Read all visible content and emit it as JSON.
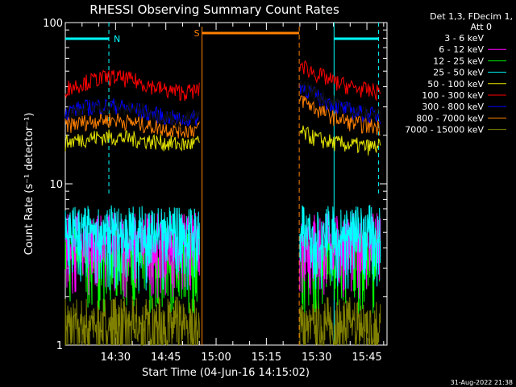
{
  "chart_data": {
    "type": "line",
    "title": "RHESSI Observing Summary Count Rates",
    "xlabel": "Start Time (04-Jun-16 14:15:02)",
    "ylabel": "Count Rate (s⁻¹ detector⁻¹)",
    "yscale": "log",
    "ylim": [
      1,
      100
    ],
    "xlim_min": [
      0,
      96
    ],
    "xtick_labels": [
      "14:30",
      "14:45",
      "15:00",
      "15:15",
      "15:30",
      "15:45"
    ],
    "xtick_min": [
      15,
      30,
      45,
      60,
      75,
      90
    ],
    "ytick_labels": [
      "1",
      "10",
      "100"
    ],
    "ytick_values": [
      1,
      10,
      100
    ],
    "legend_header": [
      "Det 1,3, FDecim 1,",
      "Att 0"
    ],
    "legend_position": "right",
    "data_gaps_min": [
      [
        40.8,
        69.8
      ]
    ],
    "series": [
      {
        "name": "3 - 6 keV",
        "color": "#000000",
        "segments": [
          {
            "x": [
              0,
              5,
              10,
              15,
              20,
              25,
              30,
              35,
              40
            ],
            "y": [
              28,
              29,
              30,
              30,
              29,
              28,
              26,
              25,
              26
            ]
          },
          {
            "x": [
              70,
              75,
              80,
              85,
              90,
              94
            ],
            "y": [
              42,
              36,
              32,
              29,
              27,
              27
            ]
          }
        ]
      },
      {
        "name": "6 - 12 keV",
        "color": "#ff00ff",
        "segments": [
          {
            "x": [
              0,
              40
            ],
            "y": [
              4.3,
              4.3
            ]
          },
          {
            "x": [
              70,
              94
            ],
            "y": [
              4.3,
              4.3
            ]
          }
        ]
      },
      {
        "name": "12 - 25 keV",
        "color": "#00ff00",
        "segments": [
          {
            "x": [
              0,
              40
            ],
            "y": [
              3.5,
              3.5
            ]
          },
          {
            "x": [
              70,
              94
            ],
            "y": [
              3.5,
              3.5
            ]
          }
        ]
      },
      {
        "name": "25 - 50 keV",
        "color": "#00ffff",
        "segments": [
          {
            "x": [
              0,
              40
            ],
            "y": [
              4.8,
              4.8
            ]
          },
          {
            "x": [
              70,
              94
            ],
            "y": [
              4.8,
              4.8
            ]
          }
        ]
      },
      {
        "name": "50 - 100 keV",
        "color": "#e6e600",
        "segments": [
          {
            "x": [
              0,
              5,
              10,
              15,
              20,
              25,
              30,
              35,
              40
            ],
            "y": [
              18,
              19,
              19.5,
              19.5,
              19,
              18.5,
              18,
              17.5,
              18
            ]
          },
          {
            "x": [
              70,
              75,
              80,
              85,
              90,
              94
            ],
            "y": [
              21,
              19,
              18,
              17.5,
              17,
              17
            ]
          }
        ]
      },
      {
        "name": "100 - 300 keV",
        "color": "#ff0000",
        "segments": [
          {
            "x": [
              0,
              5,
              10,
              15,
              20,
              25,
              30,
              35,
              40
            ],
            "y": [
              39,
              42,
              45,
              46,
              44,
              41,
              38,
              37,
              38
            ]
          },
          {
            "x": [
              70,
              75,
              80,
              85,
              90,
              94
            ],
            "y": [
              55,
              48,
              43,
              40,
              38,
              37
            ]
          }
        ]
      },
      {
        "name": "300 - 800 keV",
        "color": "#0000ff",
        "segments": [
          {
            "x": [
              0,
              5,
              10,
              15,
              20,
              25,
              30,
              35,
              40
            ],
            "y": [
              28,
              29.5,
              30.5,
              30.5,
              29,
              27.5,
              26,
              25,
              26
            ]
          },
          {
            "x": [
              70,
              75,
              80,
              85,
              90,
              94
            ],
            "y": [
              41,
              35,
              31,
              28.5,
              27,
              26.5
            ]
          }
        ]
      },
      {
        "name": "800 - 7000 keV",
        "color": "#ff8000",
        "segments": [
          {
            "x": [
              0,
              5,
              10,
              15,
              20,
              25,
              30,
              35,
              40
            ],
            "y": [
              23,
              24,
              25,
              25,
              24,
              23,
              22,
              21.5,
              22
            ]
          },
          {
            "x": [
              70,
              75,
              80,
              85,
              90,
              94
            ],
            "y": [
              34,
              29,
              26,
              24,
              23,
              22.5
            ]
          }
        ]
      },
      {
        "name": "7000 - 15000 keV",
        "color": "#808000",
        "segments": [
          {
            "x": [
              0,
              40
            ],
            "y": [
              1.3,
              1.3
            ]
          },
          {
            "x": [
              70,
              94
            ],
            "y": [
              1.3,
              1.3
            ]
          }
        ]
      }
    ],
    "flag_bars": [
      {
        "label": "N",
        "color": "#00ffff",
        "segments": [
          {
            "x": [
              0,
              13
            ]
          },
          {
            "x": [
              80.2,
              93.5
            ]
          }
        ]
      },
      {
        "label": "S",
        "color": "#ff8000",
        "segments": [
          {
            "x": [
              40.8,
              69.8
            ]
          }
        ]
      }
    ],
    "timestamp": "31-Aug-2022 21:38"
  }
}
